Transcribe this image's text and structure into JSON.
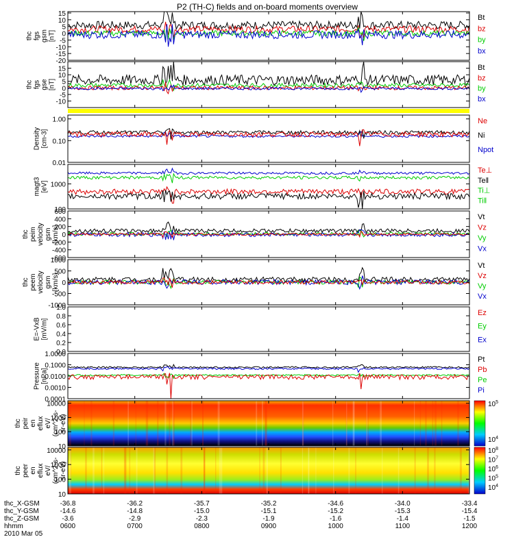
{
  "title": "P2 (TH-C) fields and on-board moments overview",
  "chart_data": {
    "type": "line",
    "x_ticks": [
      "0600",
      "0700",
      "0800",
      "0900",
      "1000",
      "1100",
      "1200"
    ],
    "panels": [
      {
        "id": "fgs_gsm",
        "ylabel": [
          "thc",
          "fgs",
          "gsm",
          "[nT]"
        ],
        "scale": "linear",
        "ylim": [
          -20,
          16
        ],
        "ticks": [
          "15",
          "10",
          "5",
          "0",
          "-5",
          "-10",
          "-15",
          "-20"
        ],
        "legend": [
          {
            "text": "Bt",
            "color": "#000000"
          },
          {
            "text": "bz",
            "color": "#dd0000"
          },
          {
            "text": "by",
            "color": "#00cc00"
          },
          {
            "text": "bx",
            "color": "#0000cc"
          }
        ],
        "series": [
          {
            "color": "#000000",
            "base": 6,
            "amp": 3
          },
          {
            "color": "#dd0000",
            "base": 3,
            "amp": 2.5
          },
          {
            "color": "#00cc00",
            "base": 0,
            "amp": 2
          },
          {
            "color": "#0000cc",
            "base": -1,
            "amp": 3
          }
        ]
      },
      {
        "id": "fgs_gse",
        "ylabel": [
          "thc",
          "fgs",
          "gse",
          "[nT]"
        ],
        "scale": "linear",
        "ylim": [
          -15,
          20
        ],
        "ticks": [
          "15",
          "10",
          "5",
          "0",
          "-5",
          "-10"
        ],
        "legend": [
          {
            "text": "Bt",
            "color": "#000000"
          },
          {
            "text": "bz",
            "color": "#dd0000"
          },
          {
            "text": "by",
            "color": "#00cc00"
          },
          {
            "text": "bx",
            "color": "#0000cc"
          }
        ],
        "series": [
          {
            "color": "#000000",
            "base": 6,
            "amp": 4
          },
          {
            "color": "#00cc00",
            "base": 2,
            "amp": 1.5
          },
          {
            "color": "#dd0000",
            "base": 0,
            "amp": 1.5
          },
          {
            "color": "#0000cc",
            "base": -0.5,
            "amp": 1
          }
        ]
      },
      {
        "id": "density",
        "ylabel": [
          "Density",
          "[cm-3]"
        ],
        "scale": "log",
        "ylim": [
          0.01,
          1.5
        ],
        "ticks": [
          "1.00",
          "0.10",
          "0.01"
        ],
        "legend": [
          {
            "text": "Ne",
            "color": "#dd0000"
          },
          {
            "text": "Ni",
            "color": "#000000"
          },
          {
            "text": "Npot",
            "color": "#0000cc"
          }
        ],
        "series": [
          {
            "color": "#0000cc",
            "base": 0.16,
            "amp": 0.02
          },
          {
            "color": "#000000",
            "base": 0.24,
            "amp": 0.05
          },
          {
            "color": "#dd0000",
            "base": 0.2,
            "amp": 0.05
          }
        ]
      },
      {
        "id": "temperature",
        "ylabel": [
          "magt3",
          "[eV]"
        ],
        "scale": "log",
        "ylim": [
          100,
          6000
        ],
        "ticks": [
          "1000",
          "100"
        ],
        "legend": [
          {
            "text": "Te⊥",
            "color": "#dd0000"
          },
          {
            "text": "Te‖",
            "color": "#000000"
          },
          {
            "text": "Ti⊥",
            "color": "#00cc00"
          },
          {
            "text": "Ti‖",
            "color": "#00cc00"
          }
        ],
        "series": [
          {
            "color": "#0000cc",
            "base": 2700,
            "amp": 300
          },
          {
            "color": "#00cc00",
            "base": 1800,
            "amp": 250
          },
          {
            "color": "#dd0000",
            "base": 500,
            "amp": 120
          },
          {
            "color": "#000000",
            "base": 330,
            "amp": 90
          }
        ]
      },
      {
        "id": "peim_velocity",
        "ylabel": [
          "thc",
          "peim",
          "velocity",
          "gsm",
          "[km/s]"
        ],
        "scale": "linear",
        "ylim": [
          -600,
          600
        ],
        "ticks": [
          "600",
          "400",
          "200",
          "0",
          "-200",
          "-400",
          "-600"
        ],
        "legend": [
          {
            "text": "Vt",
            "color": "#000000"
          },
          {
            "text": "Vz",
            "color": "#dd0000"
          },
          {
            "text": "Vy",
            "color": "#00cc00"
          },
          {
            "text": "Vx",
            "color": "#0000cc"
          }
        ],
        "series": [
          {
            "color": "#000000",
            "base": 90,
            "amp": 50
          },
          {
            "color": "#00cc00",
            "base": 10,
            "amp": 40
          },
          {
            "color": "#0000cc",
            "base": -10,
            "amp": 50
          },
          {
            "color": "#dd0000",
            "base": 0,
            "amp": 30
          }
        ]
      },
      {
        "id": "peem_velocity",
        "ylabel": [
          "thc",
          "peem",
          "velocity",
          "gsm",
          "[km/s]"
        ],
        "scale": "linear",
        "ylim": [
          -1000,
          1000
        ],
        "ticks": [
          "1000",
          "500",
          "0",
          "-500",
          "-1000"
        ],
        "legend": [
          {
            "text": "Vt",
            "color": "#000000"
          },
          {
            "text": "Vz",
            "color": "#dd0000"
          },
          {
            "text": "Vy",
            "color": "#00cc00"
          },
          {
            "text": "Vx",
            "color": "#0000cc"
          }
        ],
        "series": [
          {
            "color": "#000000",
            "base": 120,
            "amp": 110
          },
          {
            "color": "#00cc00",
            "base": 0,
            "amp": 90
          },
          {
            "color": "#0000cc",
            "base": 0,
            "amp": 110
          },
          {
            "color": "#dd0000",
            "base": 0,
            "amp": 80
          }
        ]
      },
      {
        "id": "efield",
        "ylabel": [
          "E=-VxB",
          "[mV/m]"
        ],
        "scale": "linear",
        "ylim": [
          0,
          1
        ],
        "ticks": [
          "1.0",
          "0.8",
          "0.6",
          "0.4",
          "0.2",
          "0.0"
        ],
        "legend": [
          {
            "text": "Ez",
            "color": "#dd0000"
          },
          {
            "text": "Ey",
            "color": "#00cc00"
          },
          {
            "text": "Ex",
            "color": "#0000cc"
          }
        ],
        "series": []
      },
      {
        "id": "pressure",
        "ylabel": [
          "Pressure",
          "[nPa]"
        ],
        "scale": "log",
        "ylim": [
          0.0001,
          1
        ],
        "ticks": [
          "1.0000",
          "0.1000",
          "0.0100",
          "0.0010",
          "0.0001"
        ],
        "legend": [
          {
            "text": "Pt",
            "color": "#000000"
          },
          {
            "text": "Pb",
            "color": "#dd0000"
          },
          {
            "text": "Pe",
            "color": "#00cc00"
          },
          {
            "text": "Pi",
            "color": "#0000cc"
          }
        ],
        "series": [
          {
            "color": "#000000",
            "base": 0.06,
            "amp": 0.01
          },
          {
            "color": "#0000cc",
            "base": 0.045,
            "amp": 0.008
          },
          {
            "color": "#00cc00",
            "base": 0.012,
            "amp": 0.002
          },
          {
            "color": "#dd0000",
            "base": 0.009,
            "amp": 0.004
          }
        ]
      },
      {
        "id": "peir_spec",
        "ylabel": [
          "thc",
          "peir",
          "en",
          "eflux",
          "eV/",
          "(cm^2-s-",
          "sr-eV)"
        ],
        "scale": "log",
        "ylim": [
          10,
          15000
        ],
        "ticks": [
          "10000",
          "1000",
          "100",
          "10"
        ],
        "spectrogram": true,
        "cbar": [
          "10^5",
          "10^4"
        ]
      },
      {
        "id": "peer_spec",
        "ylabel": [
          "thc",
          "peer",
          "en",
          "eflux",
          "eV/",
          "(cm^2-s-",
          "sr-eV)"
        ],
        "scale": "log",
        "ylim": [
          10,
          15000
        ],
        "ticks": [
          "10000",
          "1000",
          "100",
          "10"
        ],
        "spectrogram": true,
        "cbar": [
          "10^8",
          "10^7",
          "10^6",
          "10^5",
          "10^4"
        ]
      }
    ]
  },
  "ephemeris": {
    "labels": [
      "thc_X-GSM",
      "thc_Y-GSM",
      "thc_Z-GSM",
      "hhmm",
      "2010 Mar 05"
    ],
    "x": [
      "-36.8",
      "-36.2",
      "-35.7",
      "-35.2",
      "-34.6",
      "-34.0",
      "-33.4"
    ],
    "y": [
      "-14.6",
      "-14.8",
      "-15.0",
      "-15.1",
      "-15.2",
      "-15.3",
      "-15.4"
    ],
    "z": [
      "-3.6",
      "-2.9",
      "-2.3",
      "-1.9",
      "-1.6",
      "-1.4",
      "-1.5"
    ],
    "hhmm": [
      "0600",
      "0700",
      "0800",
      "0900",
      "1000",
      "1100",
      "1200"
    ]
  }
}
